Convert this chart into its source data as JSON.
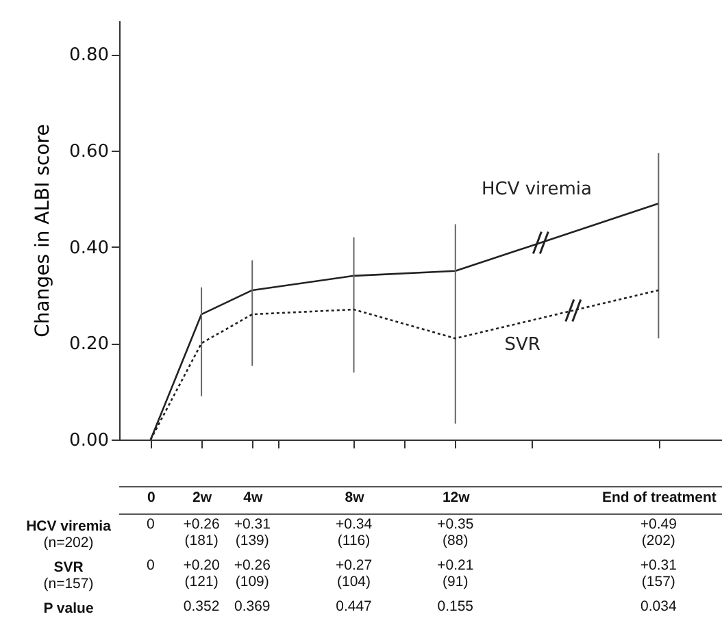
{
  "chart_data": {
    "type": "line",
    "ylabel": "Changes in ALBI score",
    "x": [
      0,
      2,
      4,
      8,
      12,
      20
    ],
    "xlim": [
      -1.24,
      22.5
    ],
    "xticks": [
      {
        "value": 0,
        "label": "0"
      },
      {
        "value": 2,
        "label": "2w"
      },
      {
        "value": 4,
        "label": "4w"
      },
      {
        "value": 5,
        "label": null
      },
      {
        "value": 8,
        "label": "8w"
      },
      {
        "value": 10,
        "label": null
      },
      {
        "value": 12,
        "label": "12w"
      },
      {
        "value": 15,
        "label": null
      },
      {
        "value": 20,
        "label": "End of treatment"
      }
    ],
    "ylim": [
      0,
      0.87
    ],
    "yticks": [
      {
        "value": 0,
        "label": "0.00"
      },
      {
        "value": 0.2,
        "label": "0.20"
      },
      {
        "value": 0.4,
        "label": "0.40"
      },
      {
        "value": 0.6,
        "label": "0.60"
      },
      {
        "value": 0.8,
        "label": "0.80"
      }
    ],
    "series": [
      {
        "name": "HCV viremia",
        "color": "#222222",
        "line_style": "solid",
        "values": [
          0,
          0.26,
          0.31,
          0.34,
          0.35,
          0.49
        ]
      },
      {
        "name": "SVR",
        "color": "#222222",
        "line_style": "dotted",
        "values": [
          0,
          0.2,
          0.26,
          0.27,
          0.21,
          0.31
        ],
        "errors": [
          null,
          [
            0.09,
            0.316
          ],
          [
            0.153,
            0.372
          ],
          [
            0.139,
            0.42
          ],
          [
            0.033,
            0.447
          ],
          [
            0.21,
            0.595
          ]
        ]
      }
    ],
    "annotations": [
      "(n=202)",
      "(n=157)",
      "P value",
      "0",
      "+0.26\n(181)",
      "+0.31\n(139)",
      "+0.34\n(116)",
      "+0.35\n(88)",
      "+0.49\n(202)",
      "0",
      "+0.20\n(121)",
      "+0.26\n(109)",
      "+0.27\n(104)",
      "+0.21\n(91)",
      "+0.31\n(157)",
      "0.352",
      "0.369",
      "0.447",
      "0.155",
      "0.034"
    ]
  }
}
